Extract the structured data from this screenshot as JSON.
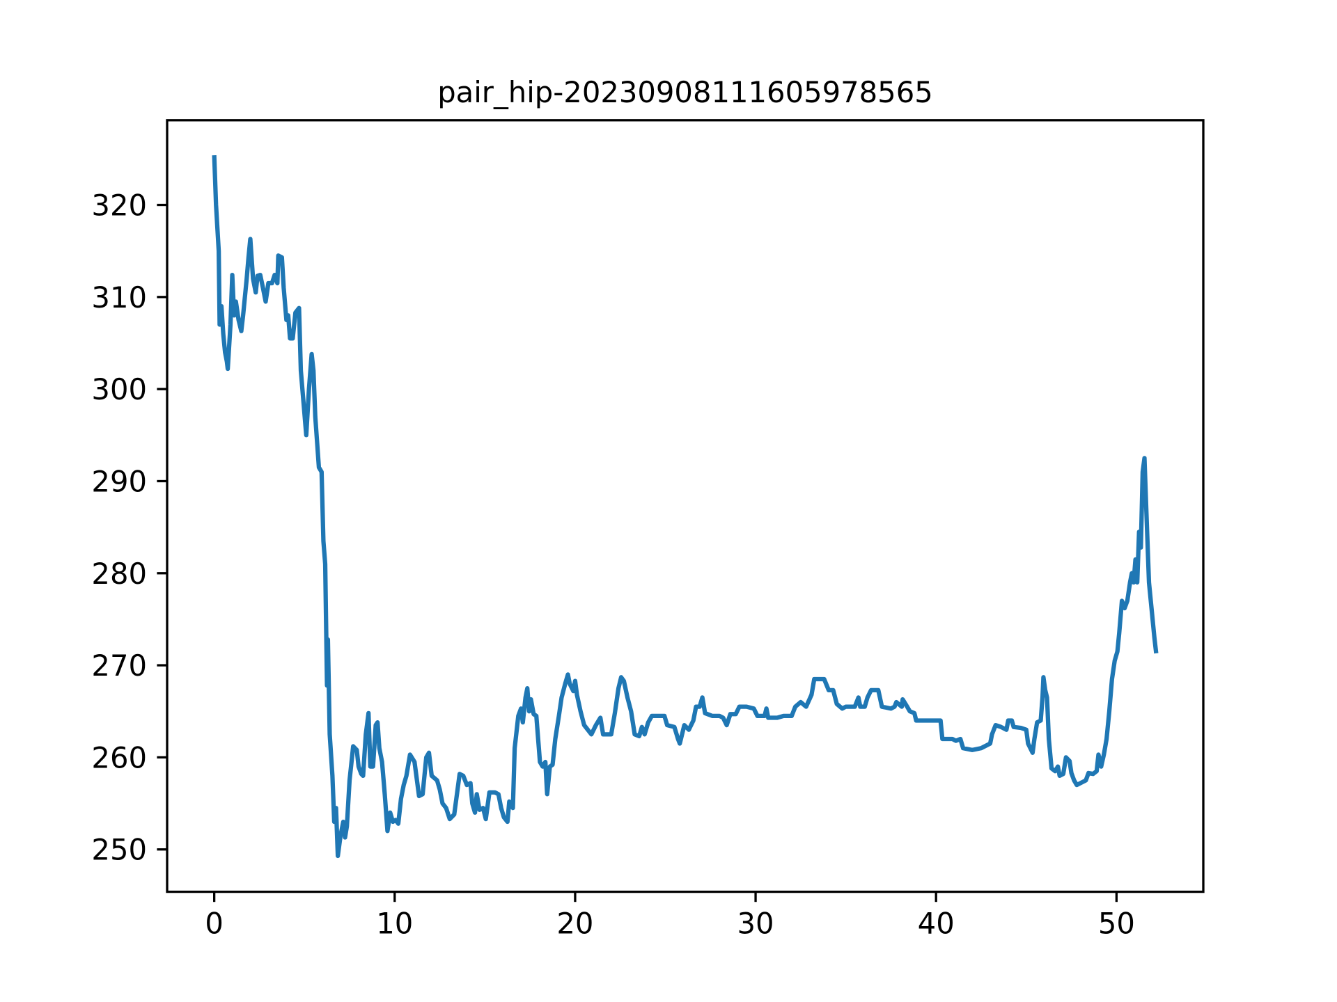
{
  "chart_data": {
    "type": "line",
    "title": "pair_hip-20230908111605978565",
    "x": [
      0,
      0.1,
      0.25,
      0.3,
      0.4,
      0.5,
      0.6,
      0.7,
      0.75,
      0.9,
      1.0,
      1.1,
      1.2,
      1.35,
      1.5,
      1.6,
      1.8,
      1.9,
      2.0,
      2.15,
      2.3,
      2.4,
      2.55,
      2.7,
      2.85,
      3.0,
      3.2,
      3.35,
      3.5,
      3.55,
      3.75,
      3.85,
      4.0,
      4.1,
      4.2,
      4.35,
      4.5,
      4.7,
      4.8,
      4.95,
      5.1,
      5.25,
      5.4,
      5.5,
      5.6,
      5.8,
      5.95,
      6.05,
      6.15,
      6.25,
      6.3,
      6.4,
      6.55,
      6.65,
      6.75,
      6.85,
      7.0,
      7.15,
      7.25,
      7.35,
      7.5,
      7.7,
      7.9,
      8.0,
      8.15,
      8.25,
      8.4,
      8.55,
      8.65,
      8.8,
      8.95,
      9.05,
      9.15,
      9.3,
      9.45,
      9.6,
      9.75,
      9.9,
      10.05,
      10.2,
      10.35,
      10.5,
      10.65,
      10.85,
      11.1,
      11.35,
      11.55,
      11.75,
      11.9,
      12.05,
      12.35,
      12.5,
      12.65,
      12.85,
      13.05,
      13.3,
      13.6,
      13.8,
      14.0,
      14.2,
      14.3,
      14.45,
      14.55,
      14.7,
      14.9,
      15.05,
      15.25,
      15.55,
      15.75,
      15.9,
      16.05,
      16.25,
      16.35,
      16.55,
      16.65,
      16.85,
      17.0,
      17.1,
      17.25,
      17.35,
      17.45,
      17.55,
      17.7,
      17.85,
      18.05,
      18.2,
      18.35,
      18.45,
      18.6,
      18.75,
      18.9,
      19.1,
      19.25,
      19.45,
      19.6,
      19.7,
      19.9,
      20.0,
      20.1,
      20.3,
      20.5,
      20.7,
      20.9,
      21.15,
      21.4,
      21.55,
      22.0,
      22.2,
      22.4,
      22.55,
      22.7,
      22.9,
      23.1,
      23.3,
      23.55,
      23.7,
      23.85,
      24.05,
      24.25,
      24.6,
      24.95,
      25.1,
      25.5,
      25.7,
      25.8,
      26.05,
      26.3,
      26.55,
      26.7,
      26.9,
      27.05,
      27.2,
      27.6,
      28.0,
      28.2,
      28.4,
      28.6,
      28.9,
      29.1,
      29.5,
      29.9,
      30.1,
      30.5,
      30.6,
      30.7,
      31.2,
      31.55,
      32.0,
      32.2,
      32.5,
      32.8,
      33.1,
      33.25,
      33.8,
      34.05,
      34.3,
      34.5,
      34.8,
      35.0,
      35.5,
      35.7,
      35.8,
      36.05,
      36.2,
      36.4,
      36.8,
      37.0,
      37.5,
      37.7,
      37.8,
      38.1,
      38.15,
      38.4,
      38.55,
      38.8,
      38.9,
      39.5,
      40.0,
      40.25,
      40.35,
      40.9,
      41.1,
      41.35,
      41.5,
      42.0,
      42.5,
      43.0,
      43.1,
      43.3,
      43.6,
      43.9,
      44.0,
      44.2,
      44.3,
      44.7,
      45.0,
      45.1,
      45.35,
      45.45,
      45.6,
      45.8,
      45.9,
      45.95,
      46.05,
      46.15,
      46.25,
      46.4,
      46.6,
      46.75,
      46.85,
      47.05,
      47.2,
      47.4,
      47.5,
      47.65,
      47.8,
      48.1,
      48.3,
      48.45,
      48.7,
      48.9,
      49.0,
      49.15,
      49.3,
      49.45,
      49.6,
      49.75,
      49.9,
      50.05,
      50.15,
      50.3,
      50.45,
      50.6,
      50.75,
      50.85,
      50.95,
      51.05,
      51.15,
      51.25,
      51.35,
      51.45,
      51.55,
      51.65,
      51.8,
      51.95,
      52.1,
      52.2
    ],
    "series": [
      {
        "color": "#1f77b4",
        "values": [
          325.4,
          320,
          315,
          307,
          309,
          306,
          304,
          303,
          302.2,
          307,
          312.4,
          308,
          309.5,
          307.5,
          306.3,
          308,
          312,
          314.3,
          316.3,
          312,
          310.5,
          312.3,
          312.4,
          311,
          309.5,
          311.5,
          311.5,
          312.4,
          311.5,
          314.5,
          314.3,
          311,
          307.5,
          308,
          305.5,
          305.5,
          308.3,
          308.8,
          302,
          298.5,
          295,
          300,
          303.8,
          302,
          297,
          291.5,
          291,
          283.5,
          281,
          267.8,
          272.8,
          262.5,
          258,
          253,
          254.5,
          249.3,
          251.5,
          253,
          251.3,
          252.5,
          257.5,
          261.2,
          260.8,
          259,
          258.2,
          258,
          262.5,
          264.8,
          259,
          259,
          263.5,
          263.8,
          261,
          259.5,
          256,
          252,
          254,
          253,
          253.2,
          252.8,
          255.5,
          257,
          258,
          260.3,
          259.5,
          255.8,
          256,
          260,
          260.5,
          258,
          257.5,
          256.5,
          255,
          254.5,
          253.3,
          253.8,
          258.2,
          258,
          257,
          257.2,
          255,
          254,
          256,
          254.3,
          254.5,
          253.3,
          256.2,
          256.2,
          256,
          254.5,
          253.5,
          253,
          255.2,
          254.5,
          261,
          264.5,
          265.3,
          263.8,
          266.5,
          267.5,
          265,
          266.3,
          264.7,
          264.5,
          259.5,
          259,
          259.5,
          256,
          259,
          259.2,
          262,
          264.5,
          266.5,
          268,
          269,
          268,
          267.2,
          268.3,
          266.8,
          265,
          263.5,
          263,
          262.5,
          263.5,
          264.3,
          262.5,
          262.5,
          264.8,
          267.5,
          268.7,
          268.3,
          266.5,
          265,
          262.5,
          262.3,
          263.3,
          262.5,
          263.8,
          264.5,
          264.5,
          264.5,
          263.5,
          263.3,
          262,
          261.5,
          263.5,
          263,
          264,
          265.5,
          265.5,
          266.5,
          264.8,
          264.5,
          264.5,
          264.3,
          263.5,
          264.7,
          264.7,
          265.5,
          265.5,
          265.3,
          264.5,
          264.5,
          265.3,
          264.3,
          264.3,
          264.5,
          264.5,
          265.5,
          266,
          265.5,
          266.8,
          268.5,
          268.5,
          267.3,
          267.3,
          265.8,
          265.3,
          265.5,
          265.5,
          266.5,
          265.5,
          265.5,
          266.5,
          267.3,
          267.3,
          265.5,
          265.3,
          265.5,
          266,
          265.5,
          266.3,
          265.5,
          265,
          264.8,
          264,
          264,
          264,
          264,
          262,
          262,
          261.8,
          262,
          261,
          260.8,
          261,
          261.5,
          262.5,
          263.5,
          263.3,
          263,
          264,
          264,
          263.3,
          263.2,
          263,
          261.5,
          260.5,
          262,
          263.8,
          264,
          266.5,
          268.7,
          267.3,
          266.5,
          262,
          258.8,
          258.5,
          259,
          258,
          258.2,
          260,
          259.6,
          258.3,
          257.5,
          257,
          257.3,
          257.5,
          258.3,
          258.2,
          258.5,
          260.3,
          259,
          260.3,
          262,
          265,
          268.5,
          270.5,
          271.5,
          273.5,
          277,
          276.2,
          277,
          279,
          280,
          279,
          281.5,
          279,
          284.5,
          282.8,
          291,
          292.5,
          287,
          279,
          276,
          273,
          271.3
        ]
      }
    ],
    "xlim": [
      -2.61,
      54.81
    ],
    "ylim": [
      245.4,
      329.2
    ],
    "xticks": [
      0,
      10,
      20,
      30,
      40,
      50
    ],
    "yticks": [
      250,
      260,
      270,
      280,
      290,
      300,
      310,
      320
    ]
  }
}
